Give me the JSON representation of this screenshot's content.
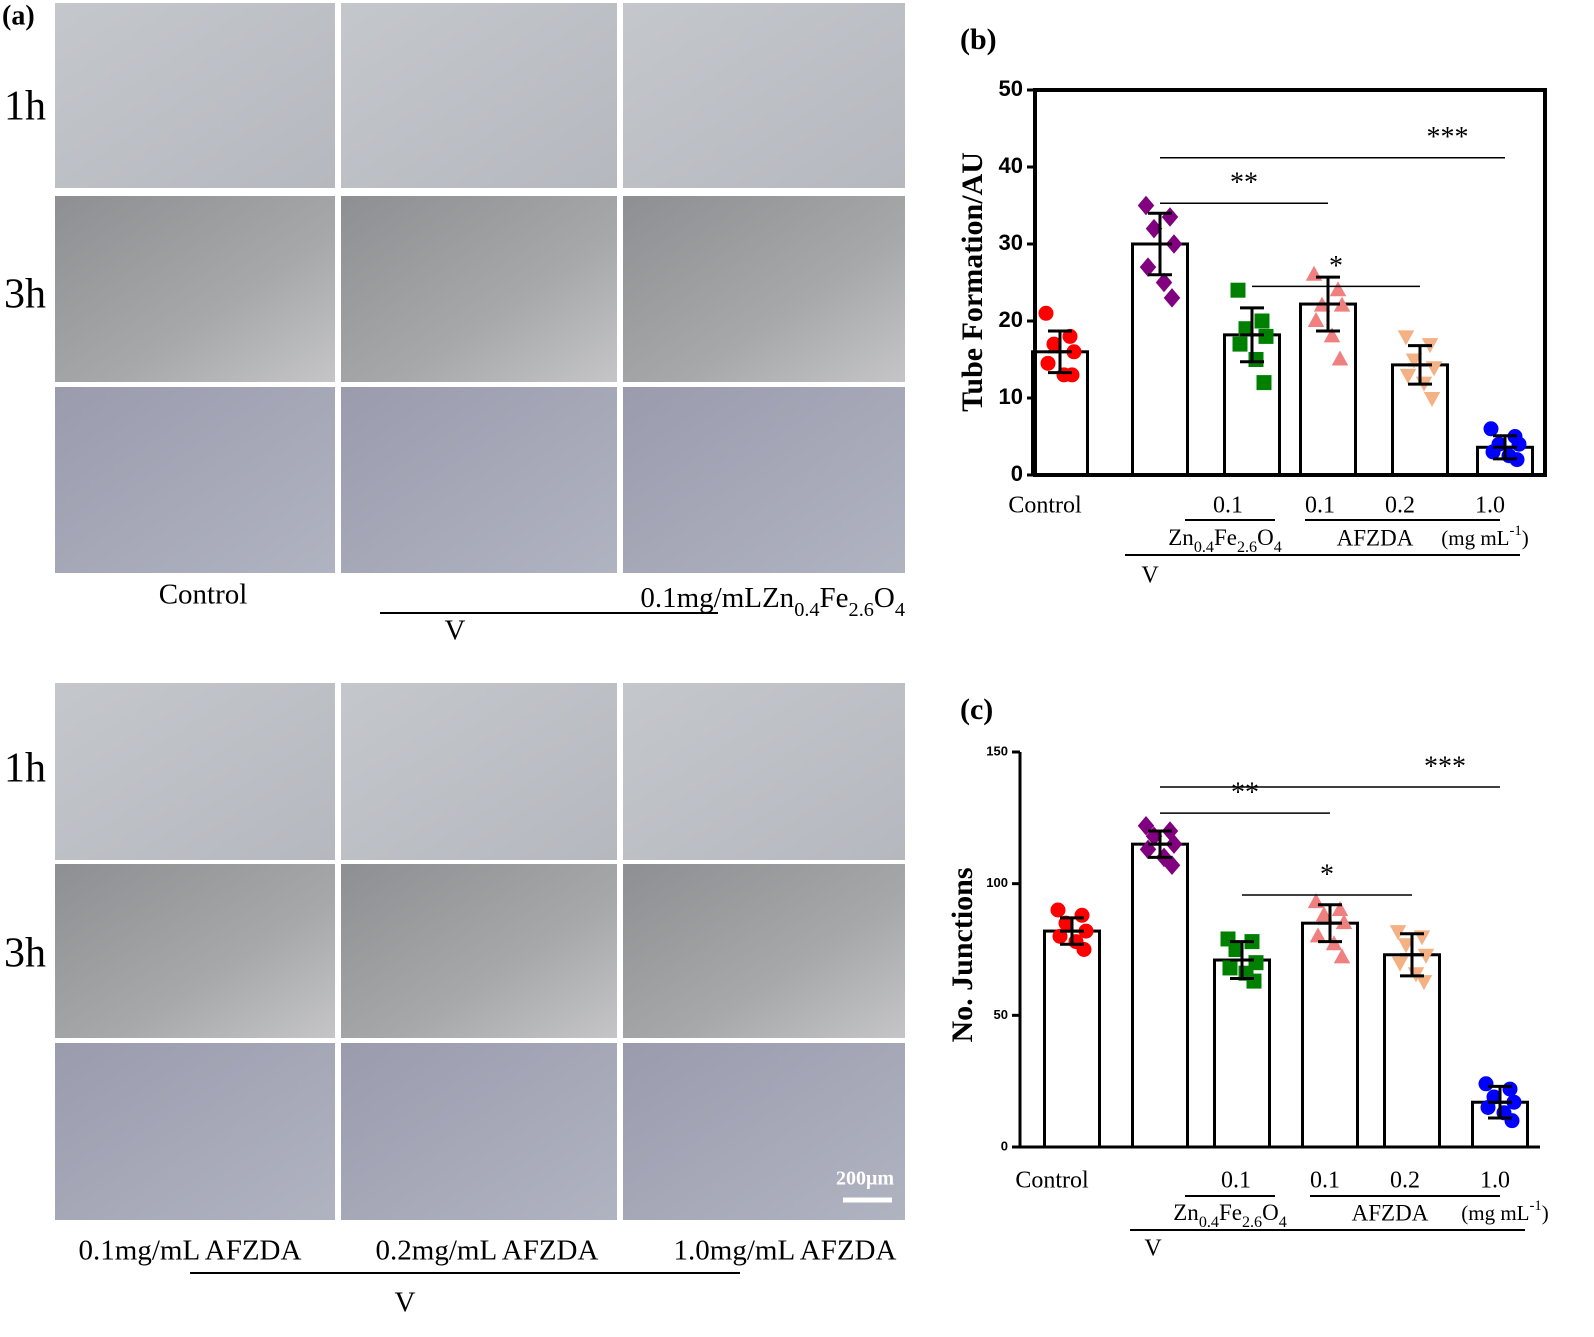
{
  "panel_a": {
    "label": "(a)",
    "top": {
      "rows": [
        "1h",
        "3h"
      ],
      "control": "Control",
      "dose": "0.1mg/mL",
      "formula": [
        "Zn",
        "0.4",
        "Fe",
        "2.6",
        "O",
        "4"
      ],
      "group": "V"
    },
    "bottom": {
      "rows": [
        "1h",
        "3h"
      ],
      "captions": [
        "0.1mg/mL AFZDA",
        "0.2mg/mL AFZDA",
        "1.0mg/mL AFZDA"
      ],
      "group": "V",
      "scale_bar": "200μm"
    }
  },
  "chart_data": [
    {
      "type": "bar",
      "panel_label": "(b)",
      "ylabel": "Tube Formation/AU",
      "categories": [
        "Control",
        null,
        "0.1",
        "0.1",
        "0.2",
        "1.0"
      ],
      "values": [
        16,
        30,
        18.2,
        22.2,
        14.3,
        3.6
      ],
      "errors": [
        2.7,
        4,
        3.5,
        3.5,
        2.5,
        1.5
      ],
      "points": [
        [
          21,
          18,
          17,
          16,
          14.5,
          13,
          13
        ],
        [
          35,
          33.5,
          32,
          30,
          27,
          25,
          23
        ],
        [
          24,
          20,
          19,
          18,
          17,
          15,
          12
        ],
        [
          26,
          24,
          22,
          22,
          20,
          18,
          15
        ],
        [
          18,
          17,
          15,
          14,
          13,
          12,
          10
        ],
        [
          6,
          5,
          4,
          4,
          3,
          2.5,
          2
        ]
      ],
      "colors": [
        "#ff0000",
        "#800080",
        "#008000",
        "#f08080",
        "#f4b183",
        "#0000ff"
      ],
      "markers": [
        "circle",
        "diamond",
        "square",
        "triangle",
        "triangle-down",
        "circle"
      ],
      "ylim": [
        0,
        50
      ],
      "yticks": [
        0,
        10,
        20,
        30,
        40,
        50
      ],
      "frame": true,
      "group_labels": {
        "formula": [
          "Zn",
          "0.4",
          "Fe",
          "2.6",
          "O",
          "4"
        ],
        "afzda": "AFZDA",
        "unit": [
          "(mg mL",
          "-1",
          ")"
        ],
        "v": "V"
      },
      "annotations": [
        {
          "text": "**",
          "y": 35.3,
          "x": [
            1,
            3
          ]
        },
        {
          "text": "*",
          "y": 24.5,
          "x": [
            2,
            4
          ]
        },
        {
          "text": "***",
          "y": 41.2,
          "x": [
            1,
            5
          ]
        }
      ]
    },
    {
      "type": "bar",
      "panel_label": "(c)",
      "ylabel": "No. Junctions",
      "categories": [
        "Control",
        null,
        "0.1",
        "0.1",
        "0.2",
        "1.0"
      ],
      "values": [
        82,
        115,
        71,
        85,
        73,
        17
      ],
      "errors": [
        5,
        5,
        7,
        7,
        8,
        6
      ],
      "points": [
        [
          90,
          88,
          85,
          82,
          80,
          78,
          75
        ],
        [
          122,
          120,
          118,
          115,
          113,
          110,
          107
        ],
        [
          79,
          78,
          75,
          70,
          68,
          66,
          63
        ],
        [
          93,
          90,
          88,
          85,
          80,
          77,
          72
        ],
        [
          82,
          80,
          77,
          73,
          70,
          66,
          63
        ],
        [
          24,
          22,
          19,
          17,
          15,
          13,
          10
        ]
      ],
      "colors": [
        "#ff0000",
        "#800080",
        "#008000",
        "#f08080",
        "#f4b183",
        "#0000ff"
      ],
      "markers": [
        "circle",
        "diamond",
        "square",
        "triangle",
        "triangle-down",
        "circle"
      ],
      "ylim": [
        0,
        150
      ],
      "yticks": [
        0,
        50,
        100,
        150
      ],
      "frame": false,
      "group_labels": {
        "formula": [
          "Zn",
          "0.4",
          "Fe",
          "2.6",
          "O",
          "4"
        ],
        "afzda": "AFZDA",
        "unit": [
          "(mg mL",
          "-1",
          ")"
        ],
        "v": "V"
      },
      "annotations": [
        {
          "text": "**",
          "y": 126.8,
          "x": [
            1,
            3
          ]
        },
        {
          "text": "*",
          "y": 95.7,
          "x": [
            2,
            4
          ]
        },
        {
          "text": "***",
          "y": 136.7,
          "x": [
            1,
            5
          ]
        }
      ]
    }
  ]
}
